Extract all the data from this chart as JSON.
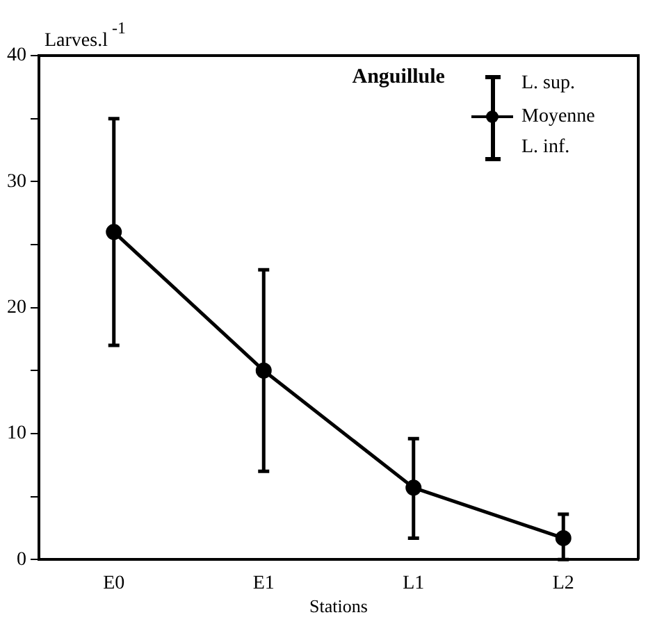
{
  "chart_data": {
    "type": "line",
    "title": "Anguillule",
    "xlabel": "Stations",
    "ylabel": "Larves.l$^{-1}$",
    "categories": [
      "E0",
      "E1",
      "L1",
      "L2"
    ],
    "series": [
      {
        "name": "Moyenne",
        "color": "#000000",
        "values": [
          26,
          15,
          5.7,
          1.7
        ],
        "errors": [
          [
            17,
            35
          ],
          [
            7,
            23
          ],
          [
            1.7,
            9.6
          ],
          [
            0,
            3.6
          ]
        ]
      }
    ],
    "ylim": [
      0,
      40
    ],
    "yticks": [
      0,
      {
        "value": 5,
        "label": null
      },
      10,
      {
        "value": 15,
        "label": null
      },
      20,
      {
        "value": 25,
        "label": null
      },
      30,
      {
        "value": 35,
        "label": null
      },
      40
    ],
    "annotations": [
      "L. sup.",
      "L. inf."
    ],
    "grid": false,
    "legend": "top right",
    "marker": "circle",
    "line_style": "solid"
  }
}
